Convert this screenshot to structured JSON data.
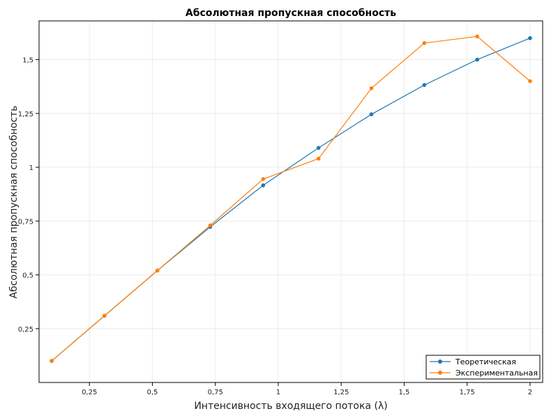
{
  "chart_data": {
    "type": "line",
    "title": "Абсолютная пропускная способность",
    "xlabel": "Интенсивность входящего потока (λ)",
    "ylabel": "Абсолютная пропускная способность",
    "xlim": [
      0.05,
      2.05
    ],
    "ylim": [
      0.0,
      1.68
    ],
    "x_ticks": [
      0.25,
      0.5,
      0.75,
      1,
      1.25,
      1.5,
      1.75,
      2
    ],
    "x_tick_labels": [
      "0,25",
      "0,5",
      "0,75",
      "1",
      "1,25",
      "1,5",
      "1,75",
      "2"
    ],
    "y_ticks": [
      0.25,
      0.5,
      0.75,
      1,
      1.25,
      1.5
    ],
    "y_tick_labels": [
      "0,25",
      "0,5",
      "0,75",
      "1",
      "1,25",
      "1,5"
    ],
    "grid": true,
    "legend_position": "bottom-right",
    "x": [
      0.1,
      0.31,
      0.52,
      0.73,
      0.94,
      1.16,
      1.37,
      1.58,
      1.79,
      2.0
    ],
    "series": [
      {
        "name": "Теоретическая",
        "color": "#1f77b4",
        "values": [
          0.1,
          0.31,
          0.52,
          0.723,
          0.916,
          1.09,
          1.246,
          1.382,
          1.5,
          1.6
        ]
      },
      {
        "name": "Экспериментальная",
        "color": "#ff7f0e",
        "values": [
          0.1,
          0.31,
          0.52,
          0.73,
          0.945,
          1.04,
          1.367,
          1.577,
          1.608,
          1.4
        ]
      }
    ]
  }
}
